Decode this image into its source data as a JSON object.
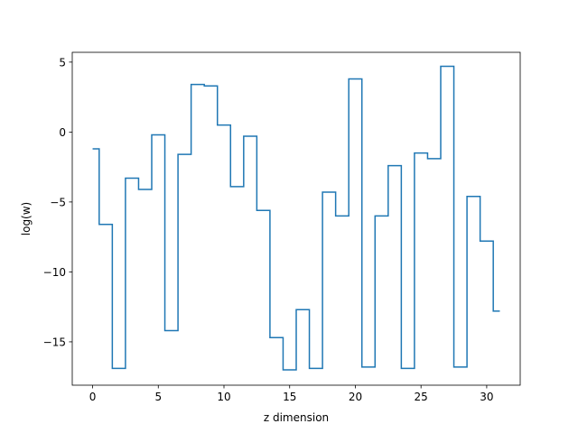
{
  "chart_data": {
    "type": "line",
    "drawstyle": "steps-mid",
    "title": "",
    "xlabel": "z dimension",
    "ylabel": "log(w)",
    "xlim": [
      -1.55,
      32.55
    ],
    "ylim": [
      -18.1,
      5.7
    ],
    "xticks": [
      0,
      5,
      10,
      15,
      20,
      25,
      30
    ],
    "yticks": [
      5,
      0,
      -5,
      -10,
      -15
    ],
    "ytick_labels": [
      "5",
      "0",
      "−5",
      "−10",
      "−15"
    ],
    "grid": false,
    "line_color": "#1f77b4",
    "series": [
      {
        "x": [
          0,
          1,
          2,
          3,
          4,
          5,
          6,
          7,
          8,
          9,
          10,
          11,
          12,
          13,
          14,
          15,
          16,
          17,
          18,
          19,
          20,
          21,
          22,
          23,
          24,
          25,
          26,
          27,
          28,
          29,
          30,
          31
        ],
        "values": [
          -1.2,
          -6.6,
          -16.9,
          -3.3,
          -4.1,
          -0.2,
          -14.2,
          -1.6,
          3.4,
          3.3,
          0.5,
          -3.9,
          -0.3,
          -5.6,
          -14.7,
          -17.0,
          -12.7,
          -16.9,
          -4.3,
          -6.0,
          3.8,
          -16.8,
          -6.0,
          -2.4,
          -16.9,
          -1.5,
          -1.9,
          4.7,
          -16.8,
          -4.6,
          -7.8,
          -12.8
        ]
      }
    ]
  }
}
